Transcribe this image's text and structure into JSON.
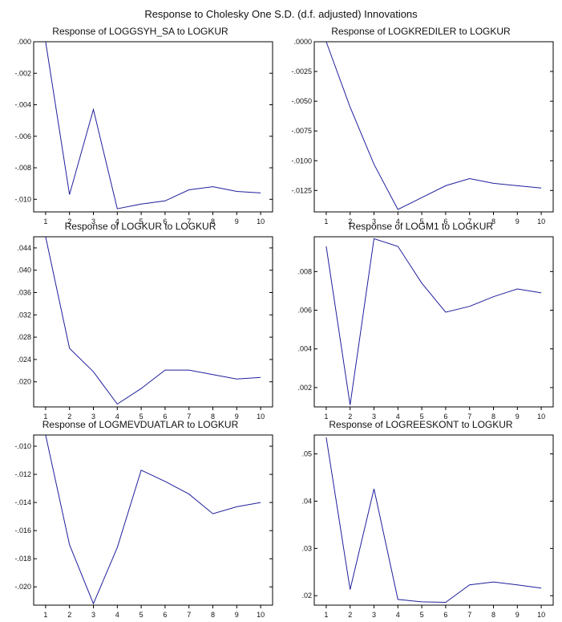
{
  "title": "Response to Cholesky One S.D. (d.f. adjusted) Innovations",
  "chart_data": [
    {
      "type": "line",
      "title": "Response of LOGGSYH_SA to LOGKUR",
      "x": [
        1,
        2,
        3,
        4,
        5,
        6,
        7,
        8,
        9,
        10
      ],
      "values": [
        0.0,
        -0.0097,
        -0.0043,
        -0.0106,
        -0.0103,
        -0.0101,
        -0.0094,
        -0.0092,
        -0.0095,
        -0.0096
      ],
      "ylim": [
        -0.0108,
        0.0
      ],
      "yticks": [
        0.0,
        -0.002,
        -0.004,
        -0.006,
        -0.008,
        -0.01
      ],
      "yticklabels": [
        ".000",
        "-.002",
        "-.004",
        "-.006",
        "-.008",
        "-.010"
      ],
      "xticklabels": [
        "1",
        "2",
        "3",
        "4",
        "5",
        "6",
        "7",
        "8",
        "9",
        "10"
      ]
    },
    {
      "type": "line",
      "title": "Response of LOGKREDILER to LOGKUR",
      "x": [
        1,
        2,
        3,
        4,
        5,
        6,
        7,
        8,
        9,
        10
      ],
      "values": [
        0.0,
        -0.0055,
        -0.0103,
        -0.0141,
        -0.0131,
        -0.0121,
        -0.0115,
        -0.0119,
        -0.0121,
        -0.0123
      ],
      "ylim": [
        -0.0143,
        0.0
      ],
      "yticks": [
        0.0,
        -0.0025,
        -0.005,
        -0.0075,
        -0.01,
        -0.0125
      ],
      "yticklabels": [
        ".0000",
        "-.0025",
        "-.0050",
        "-.0075",
        "-.0100",
        "-.0125"
      ],
      "xticklabels": [
        "1",
        "2",
        "3",
        "4",
        "5",
        "6",
        "7",
        "8",
        "9",
        "10"
      ]
    },
    {
      "type": "line",
      "title": "Response of LOGKUR to LOGKUR",
      "x": [
        1,
        2,
        3,
        4,
        5,
        6,
        7,
        8,
        9,
        10
      ],
      "values": [
        0.046,
        0.026,
        0.0218,
        0.016,
        0.0188,
        0.0221,
        0.0221,
        0.0213,
        0.0205,
        0.0208
      ],
      "ylim": [
        0.0155,
        0.046
      ],
      "yticks": [
        0.044,
        0.04,
        0.036,
        0.032,
        0.028,
        0.024,
        0.02
      ],
      "yticklabels": [
        ".044",
        ".040",
        ".036",
        ".032",
        ".028",
        ".024",
        ".020"
      ],
      "xticklabels": [
        "1",
        "2",
        "3",
        "4",
        "5",
        "6",
        "7",
        "8",
        "9",
        "10"
      ]
    },
    {
      "type": "line",
      "title": "Response of LOGM1 to LOGKUR",
      "x": [
        1,
        2,
        3,
        4,
        5,
        6,
        7,
        8,
        9,
        10
      ],
      "values": [
        0.0093,
        0.0011,
        0.0097,
        0.0093,
        0.0074,
        0.0059,
        0.0062,
        0.0067,
        0.0071,
        0.0069
      ],
      "ylim": [
        0.001,
        0.0098
      ],
      "yticks": [
        0.008,
        0.006,
        0.004,
        0.002
      ],
      "yticklabels": [
        ".008",
        ".006",
        ".004",
        ".002"
      ],
      "xticklabels": [
        "1",
        "2",
        "3",
        "4",
        "5",
        "6",
        "7",
        "8",
        "9",
        "10"
      ]
    },
    {
      "type": "line",
      "title": "Response of LOGMEVDUATLAR to LOGKUR",
      "x": [
        1,
        2,
        3,
        4,
        5,
        6,
        7,
        8,
        9,
        10
      ],
      "values": [
        -0.0092,
        -0.017,
        -0.0212,
        -0.0172,
        -0.0117,
        -0.0125,
        -0.0134,
        -0.0148,
        -0.0143,
        -0.014
      ],
      "ylim": [
        -0.0213,
        -0.0092
      ],
      "yticks": [
        -0.01,
        -0.012,
        -0.014,
        -0.016,
        -0.018,
        -0.02
      ],
      "yticklabels": [
        "-.010",
        "-.012",
        "-.014",
        "-.016",
        "-.018",
        "-.020"
      ],
      "xticklabels": [
        "1",
        "2",
        "3",
        "4",
        "5",
        "6",
        "7",
        "8",
        "9",
        "10"
      ]
    },
    {
      "type": "line",
      "title": "Response of LOGREESKONT to LOGKUR",
      "x": [
        1,
        2,
        3,
        4,
        5,
        6,
        7,
        8,
        9,
        10
      ],
      "values": [
        0.0535,
        0.0213,
        0.0426,
        0.0192,
        0.0187,
        0.0186,
        0.0223,
        0.0229,
        0.0223,
        0.0216
      ],
      "ylim": [
        0.018,
        0.054
      ],
      "yticks": [
        0.05,
        0.04,
        0.03,
        0.02
      ],
      "yticklabels": [
        ".05",
        ".04",
        ".03",
        ".02"
      ],
      "xticklabels": [
        "1",
        "2",
        "3",
        "4",
        "5",
        "6",
        "7",
        "8",
        "9",
        "10"
      ]
    }
  ]
}
